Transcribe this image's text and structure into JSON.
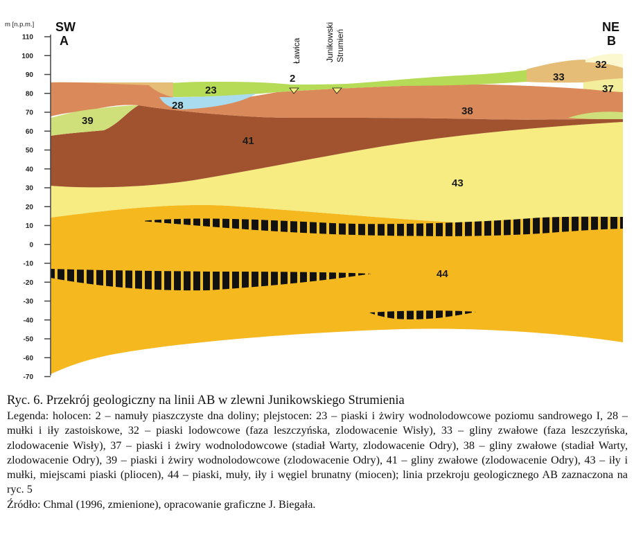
{
  "figure": {
    "axis": {
      "unit_label": "m [n.p.m.]",
      "ticks": [
        "110",
        "100",
        "90",
        "80",
        "70",
        "60",
        "50",
        "40",
        "30",
        "20",
        "10",
        "0",
        "-10",
        "-20",
        "-30",
        "-40",
        "-50",
        "-60",
        "-70"
      ]
    },
    "profile": {
      "start_label": "SW",
      "start_letter": "A",
      "end_label": "NE",
      "end_letter": "B"
    },
    "places": [
      {
        "name": "Ławica",
        "layer": "2"
      },
      {
        "name": "Junikowski Strumień"
      }
    ],
    "place_lines": {
      "junikowski_line1": "Junikowski",
      "junikowski_line2": "Strumień"
    },
    "layers": {
      "l2": "2",
      "l23": "23",
      "l28": "28",
      "l32": "32",
      "l33": "33",
      "l37": "37",
      "l38": "38",
      "l39": "39",
      "l41": "41",
      "l43": "43",
      "l44": "44"
    },
    "colors": {
      "l44": "#f5b81f",
      "l43": "#f6ec82",
      "l41": "#a0532e",
      "l38": "#d9895a",
      "l39": "#cfe07b",
      "l23": "#b5db57",
      "l28": "#a9dcef",
      "l33": "#e6bd76",
      "l32": "#fbf7cf",
      "l37": "#f3ee9b",
      "coal": "#111111"
    }
  },
  "caption": {
    "title": "Ryc. 6. Przekrój geologiczny na linii AB w zlewni Junikowskiego Strumienia",
    "legend": "Legenda: holocen: 2 – namuły piaszczyste dna doliny; plejstocen: 23 – piaski i żwiry wodnolodowcowe poziomu sandrowego I, 28 – mułki i iły zastoiskowe, 32 – piaski lodowcowe (faza leszczyńska, zlodowacenie Wisły), 33 – gliny zwałowe (faza leszczyńska, zlodowacenie Wisły), 37 – piaski i żwiry wodnolodowcowe (stadiał Warty, zlodowacenie Odry), 38 – gliny zwałowe (stadiał Warty, zlodowacenie Odry), 39 – piaski i żwiry wodnolodowcowe (zlodowacenie Odry), 41 – gliny zwałowe (zlodowacenie Odry), 43 – iły i mułki, miejscami piaski (pliocen), 44 – piaski, muły, iły i węgiel brunatny (miocen); linia przekroju geologicznego AB zaznaczona na ryc. 5",
    "source": "Źródło: Chmal (1996, zmienione), opracowanie graficzne J. Biegała."
  }
}
